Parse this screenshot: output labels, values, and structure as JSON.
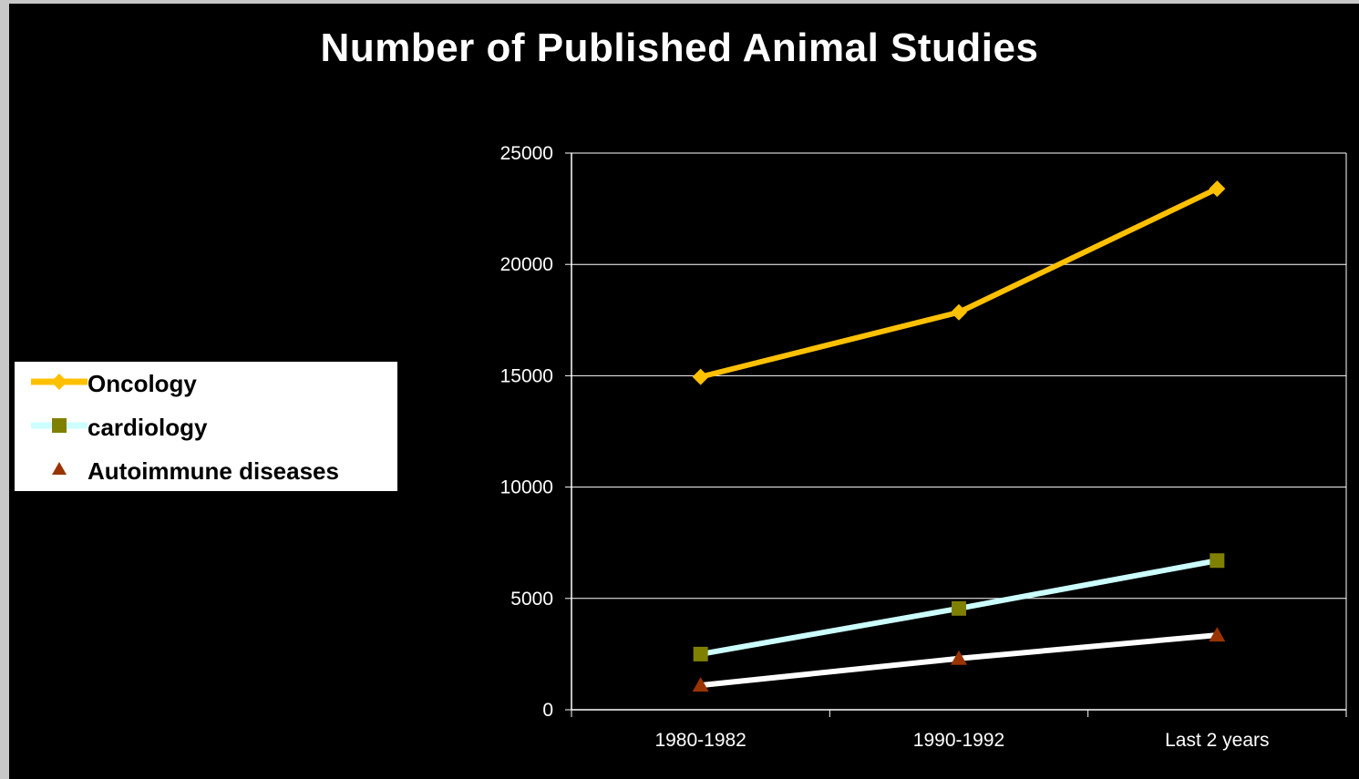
{
  "chart_data": {
    "type": "line",
    "title": "Number of Published Animal Studies",
    "categories": [
      "1980-1982",
      "1990-1992",
      "Last 2 years"
    ],
    "series": [
      {
        "name": "Oncology",
        "values": [
          14950,
          17850,
          23400
        ],
        "line_color": "#ffc000",
        "marker": "diamond",
        "marker_color": "#ffc000"
      },
      {
        "name": "cardiology",
        "values": [
          2500,
          4550,
          6700
        ],
        "line_color": "#ccffff",
        "marker": "square",
        "marker_color": "#808000"
      },
      {
        "name": "Autoimmune diseases",
        "values": [
          1100,
          2300,
          3350
        ],
        "line_color": "#ffffff",
        "marker": "triangle",
        "marker_color": "#993300"
      }
    ],
    "ylim": [
      0,
      25000
    ],
    "yticks": [
      0,
      5000,
      10000,
      15000,
      20000,
      25000
    ],
    "xlabel": "",
    "ylabel": "",
    "grid": true,
    "legend_position": "left",
    "background_color": "#000000",
    "text_color": "#ffffff"
  }
}
